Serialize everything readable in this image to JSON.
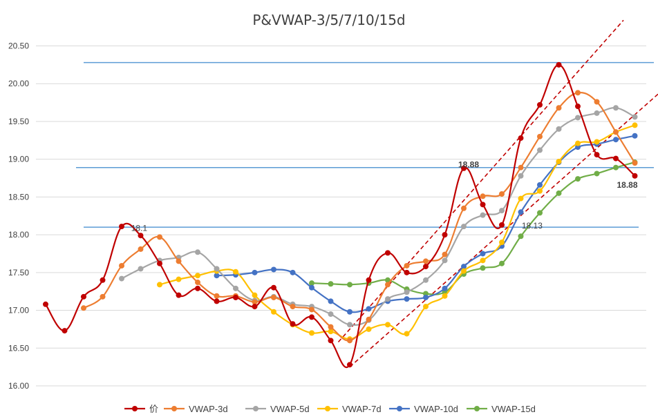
{
  "chart_data": {
    "type": "line",
    "title": "P&VWAP-3/5/7/10/15d",
    "ylim": [
      16.0,
      20.5
    ],
    "yticks": [
      "16.00",
      "16.50",
      "17.00",
      "17.50",
      "18.00",
      "18.50",
      "19.00",
      "19.50",
      "20.00",
      "20.50"
    ],
    "x_count": 32,
    "grid": "horizontal",
    "legend_position": "bottom",
    "series": [
      {
        "name": "价",
        "color": "#c00000",
        "values": [
          17.08,
          16.73,
          17.18,
          17.4,
          18.11,
          17.99,
          17.62,
          17.2,
          17.29,
          17.12,
          17.17,
          17.05,
          17.3,
          16.82,
          16.91,
          16.6,
          16.28,
          17.4,
          17.76,
          17.5,
          17.58,
          18.0,
          18.88,
          18.4,
          18.13,
          19.28,
          19.72,
          20.25,
          19.7,
          19.06,
          19.01,
          18.78
        ]
      },
      {
        "name": "VWAP-3d",
        "color": "#ed7d31",
        "values": [
          null,
          null,
          17.03,
          17.18,
          17.59,
          17.81,
          17.97,
          17.65,
          17.37,
          17.19,
          17.19,
          17.11,
          17.17,
          17.05,
          17.01,
          16.78,
          16.6,
          16.88,
          17.34,
          17.59,
          17.65,
          17.74,
          18.35,
          18.51,
          18.54,
          18.89,
          19.3,
          19.68,
          19.88,
          19.76,
          19.36,
          18.95
        ]
      },
      {
        "name": "VWAP-5d",
        "color": "#a5a5a5",
        "values": [
          null,
          null,
          null,
          null,
          17.42,
          17.55,
          17.66,
          17.7,
          17.77,
          17.55,
          17.29,
          17.13,
          17.18,
          17.08,
          17.05,
          16.95,
          16.81,
          16.87,
          17.15,
          17.24,
          17.4,
          17.66,
          18.11,
          18.26,
          18.32,
          18.78,
          19.12,
          19.4,
          19.55,
          19.61,
          19.68,
          19.56
        ]
      },
      {
        "name": "VWAP-7d",
        "color": "#ffc000",
        "values": [
          null,
          null,
          null,
          null,
          null,
          null,
          17.34,
          17.41,
          17.46,
          17.52,
          17.51,
          17.2,
          16.98,
          16.81,
          16.7,
          16.72,
          16.62,
          16.75,
          16.81,
          16.69,
          17.05,
          17.19,
          17.52,
          17.66,
          17.9,
          18.48,
          18.58,
          18.97,
          19.21,
          19.23,
          19.36,
          19.45
        ]
      },
      {
        "name": "VWAP-10d",
        "color": "#4472c4",
        "values": [
          null,
          null,
          null,
          null,
          null,
          null,
          null,
          null,
          null,
          17.46,
          17.47,
          17.5,
          17.54,
          17.5,
          17.3,
          17.12,
          16.98,
          17.02,
          17.12,
          17.15,
          17.17,
          17.29,
          17.58,
          17.75,
          17.85,
          18.3,
          18.66,
          18.96,
          19.16,
          19.2,
          19.26,
          19.31
        ]
      },
      {
        "name": "VWAP-15d",
        "color": "#70ad47",
        "values": [
          null,
          null,
          null,
          null,
          null,
          null,
          null,
          null,
          null,
          null,
          null,
          null,
          null,
          null,
          17.36,
          17.35,
          17.34,
          17.36,
          17.4,
          17.28,
          17.22,
          17.24,
          17.48,
          17.56,
          17.62,
          17.98,
          18.29,
          18.55,
          18.74,
          18.81,
          18.89,
          18.96
        ]
      }
    ],
    "hlines": [
      {
        "y": 20.28,
        "x_from": 2,
        "x_to": 32,
        "color": "#5b9bd5"
      },
      {
        "y": 18.89,
        "x_from": 1.6,
        "x_to": 32,
        "color": "#5b9bd5"
      },
      {
        "y": 18.1,
        "x_from": 2,
        "x_to": 31.2,
        "color": "#5b9bd5"
      }
    ],
    "trendlines": [
      {
        "from": [
          15.4,
          16.58
        ],
        "to": [
          30.4,
          20.84
        ],
        "color": "#c00000"
      },
      {
        "from": [
          16.0,
          16.25
        ],
        "to": [
          32.3,
          19.88
        ],
        "color": "#c00000"
      }
    ],
    "annotations": [
      {
        "text": "18.1",
        "x": 4.5,
        "y": 18.09,
        "bold": false,
        "anchor": "start"
      },
      {
        "text": "18.88",
        "x": 22.8,
        "y": 18.93,
        "bold": true,
        "anchor": "end"
      },
      {
        "text": "18.13",
        "x": 25.05,
        "y": 18.12,
        "bold": false,
        "anchor": "start"
      },
      {
        "text": "18.88",
        "x": 30.6,
        "y": 18.66,
        "bold": true,
        "anchor": "middle"
      }
    ]
  }
}
